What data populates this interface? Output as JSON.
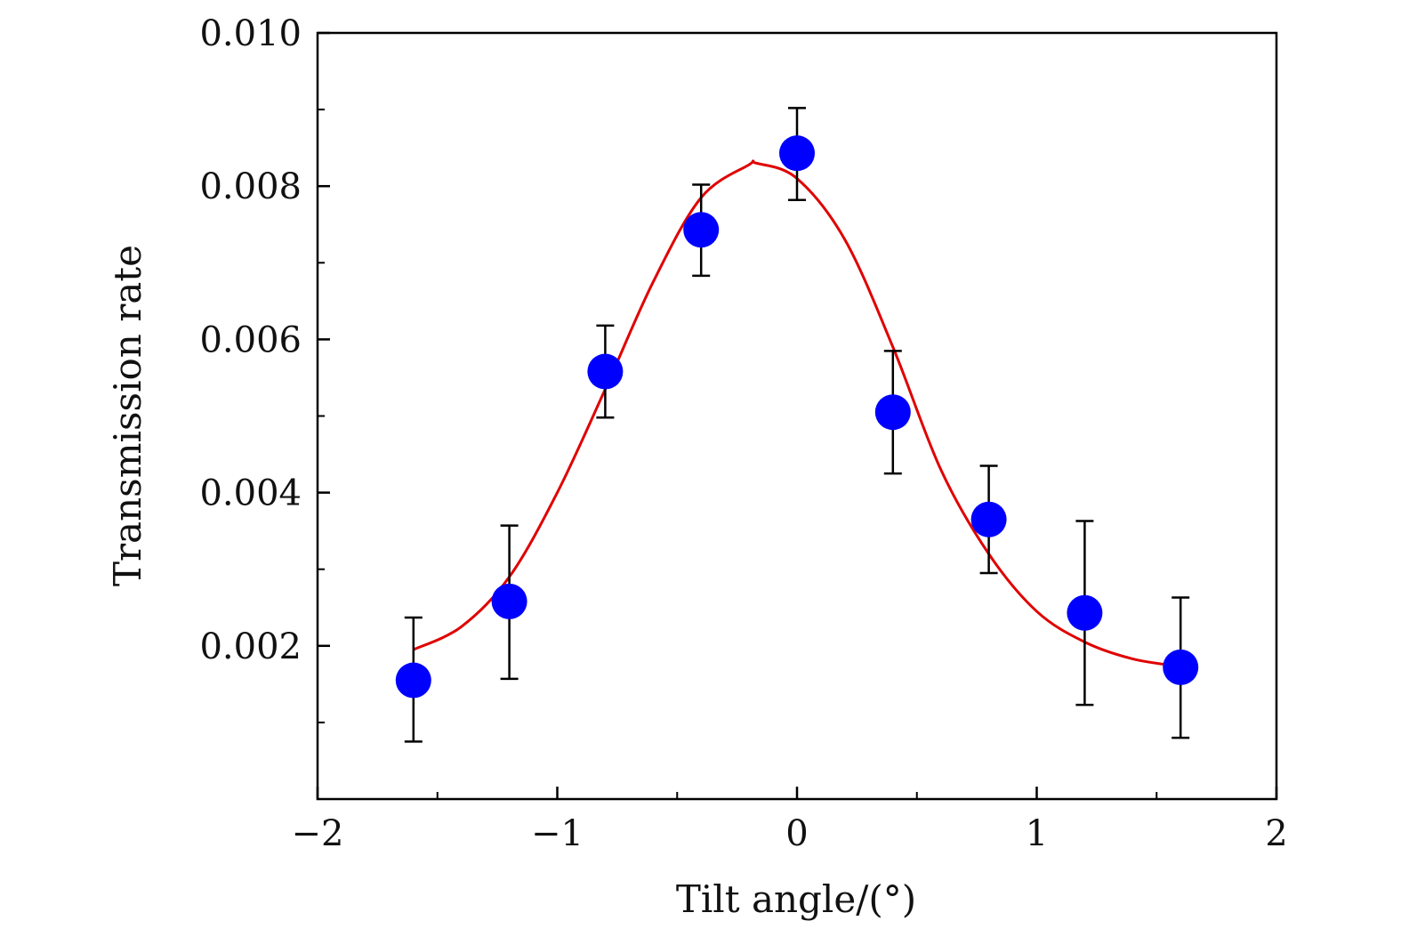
{
  "chart_data": {
    "type": "scatter",
    "xlabel": "Tilt angle/(°)",
    "ylabel": "Transmission rate",
    "xlim": [
      -2,
      2
    ],
    "ylim": [
      0.0,
      0.01
    ],
    "x_ticks": [
      -2,
      -1,
      0,
      1,
      2
    ],
    "x_tick_labels": [
      "−2",
      "−1",
      "0",
      "1",
      "2"
    ],
    "y_ticks": [
      0.002,
      0.004,
      0.006,
      0.008,
      0.01
    ],
    "y_tick_labels": [
      "0.002",
      "0.004",
      "0.006",
      "0.008",
      "0.010"
    ],
    "grid": false,
    "series": [
      {
        "kind": "points-with-error-bars",
        "color": "#0000ff",
        "x": [
          -1.6,
          -1.2,
          -0.8,
          -0.4,
          0.0,
          0.4,
          0.8,
          1.2,
          1.6
        ],
        "y": [
          0.00155,
          0.00258,
          0.00558,
          0.00743,
          0.00843,
          0.00505,
          0.00365,
          0.00243,
          0.00172
        ],
        "y_err_upper": [
          0.00237,
          0.00357,
          0.00618,
          0.00802,
          0.00902,
          0.00585,
          0.00435,
          0.00363,
          0.00263
        ],
        "y_err_lower": [
          0.00075,
          0.00157,
          0.00498,
          0.00683,
          0.00782,
          0.00425,
          0.00295,
          0.00123,
          0.0008
        ],
        "error_bar_color": "#000000"
      },
      {
        "kind": "fit-curve",
        "color": "#e00000",
        "x": [
          -1.6,
          -1.4,
          -1.2,
          -1.0,
          -0.8,
          -0.6,
          -0.4,
          -0.2,
          -0.17,
          0.0,
          0.2,
          0.4,
          0.6,
          0.8,
          1.0,
          1.2,
          1.4,
          1.6
        ],
        "y": [
          0.00195,
          0.00225,
          0.0029,
          0.004,
          0.00535,
          0.00675,
          0.00785,
          0.00828,
          0.0083,
          0.0081,
          0.0073,
          0.0059,
          0.0043,
          0.0032,
          0.00245,
          0.00205,
          0.00183,
          0.00173
        ]
      }
    ]
  }
}
